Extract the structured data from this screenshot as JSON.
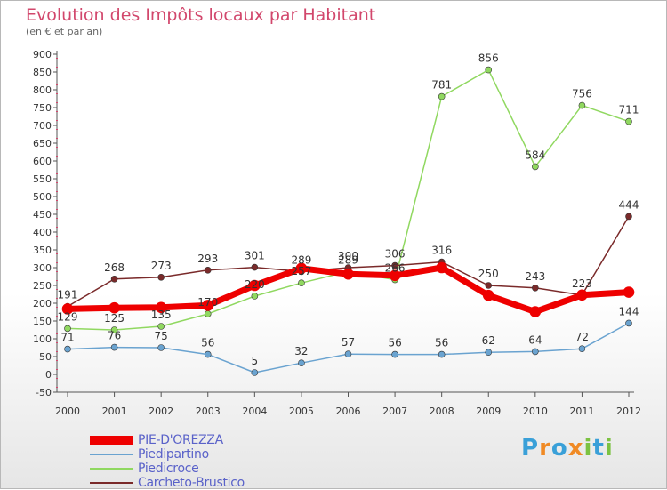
{
  "title": "Evolution des Impôts locaux par Habitant",
  "subtitle": "(en € et par an)",
  "logo": {
    "letters": [
      "P",
      "r",
      "o",
      "x",
      "i",
      "t",
      "i"
    ],
    "colors": [
      "#3aa0d8",
      "#f08a24",
      "#3aa0d8",
      "#f08a24",
      "#7cc242",
      "#3aa0d8",
      "#7cc242"
    ]
  },
  "chart_data": {
    "type": "line",
    "x": [
      "2000",
      "2001",
      "2002",
      "2003",
      "2004",
      "2005",
      "2006",
      "2007",
      "2008",
      "2009",
      "2010",
      "2011",
      "2012"
    ],
    "ylim": [
      -50,
      900
    ],
    "yticks": [
      -50,
      0,
      50,
      100,
      150,
      200,
      250,
      300,
      350,
      400,
      450,
      500,
      550,
      600,
      650,
      700,
      750,
      800,
      850,
      900
    ],
    "grid": false,
    "series": [
      {
        "name": "PIE-D'OREZZA",
        "color": "#ee0000",
        "width": 7,
        "show_labels": false,
        "values": [
          184,
          187,
          188,
          194,
          250,
          298,
          282,
          278,
          300,
          222,
          176,
          223,
          231
        ]
      },
      {
        "name": "Piedipartino",
        "color": "#6aa3d0",
        "width": 1.5,
        "show_labels": true,
        "values": [
          71,
          76,
          75,
          56,
          5,
          32,
          57,
          56,
          56,
          62,
          64,
          72,
          144
        ]
      },
      {
        "name": "Piedicroce",
        "color": "#90d860",
        "width": 1.5,
        "show_labels": true,
        "values": [
          129,
          125,
          135,
          170,
          220,
          257,
          289,
          266,
          781,
          856,
          584,
          756,
          711
        ]
      },
      {
        "name": "Carcheto-Brustico",
        "color": "#7a2a2a",
        "width": 1.5,
        "show_labels": true,
        "values": [
          191,
          268,
          273,
          293,
          301,
          289,
          300,
          306,
          316,
          250,
          243,
          223,
          444
        ]
      }
    ]
  }
}
